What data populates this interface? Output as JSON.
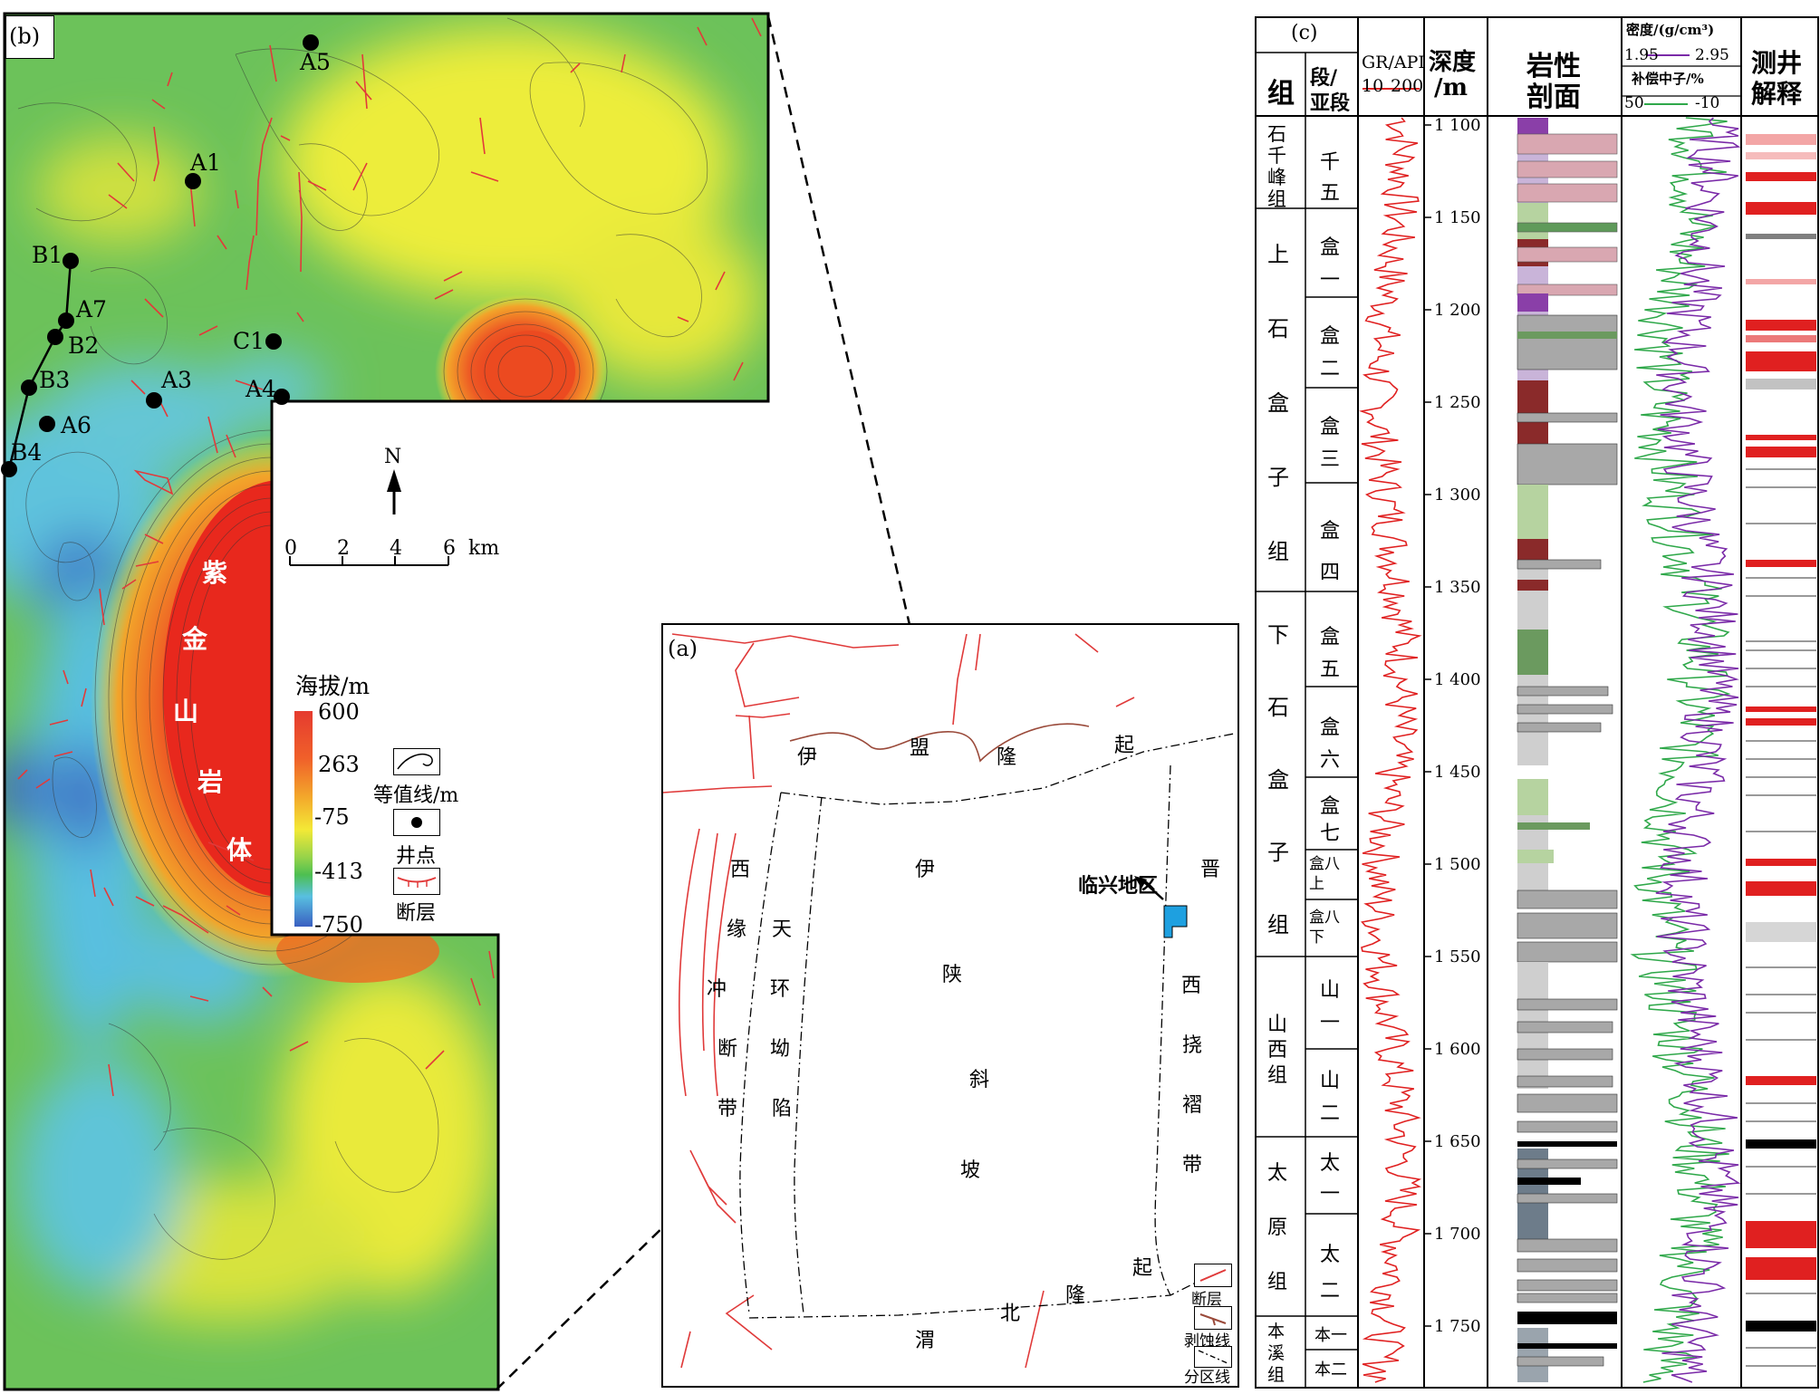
{
  "panel_b": {
    "label": "(b)",
    "wells": [
      {
        "name": "A5"
      },
      {
        "name": "A1"
      },
      {
        "name": "B1"
      },
      {
        "name": "A7"
      },
      {
        "name": "B2"
      },
      {
        "name": "C1"
      },
      {
        "name": "B3"
      },
      {
        "name": "A3"
      },
      {
        "name": "A4"
      },
      {
        "name": "A6"
      },
      {
        "name": "B4"
      }
    ],
    "rock_body_chars": [
      "紫",
      "金",
      "山",
      "岩",
      "体"
    ],
    "north": "N",
    "scale": {
      "ticks": [
        "0",
        "2",
        "4",
        "6"
      ],
      "unit": "km"
    },
    "colorbar": {
      "title": "海拔/m",
      "ticks": [
        "600",
        "263",
        "-75",
        "-413",
        "-750"
      ],
      "colors": [
        "#e53b2f",
        "#f09a2a",
        "#f3e936",
        "#4dbf51",
        "#3a5fc1"
      ]
    },
    "legend": [
      {
        "label": "等值线/m",
        "icon": "contour-icon"
      },
      {
        "label": "井点",
        "icon": "well-dot-icon"
      },
      {
        "label": "断层",
        "icon": "fault-icon"
      }
    ]
  },
  "panel_a": {
    "label": "(a)",
    "regions": [
      {
        "text": "伊盟隆起",
        "chars": [
          "伊",
          "盟",
          "隆",
          "起"
        ]
      },
      {
        "text": "西缘冲断带",
        "chars": [
          "西",
          "缘",
          "冲",
          "断",
          "带"
        ]
      },
      {
        "text": "天环坳陷",
        "chars": [
          "天",
          "环",
          "坳",
          "陷"
        ]
      },
      {
        "text": "伊陕斜坡",
        "chars": [
          "伊",
          "陕",
          "斜",
          "坡"
        ]
      },
      {
        "text": "晋西挠褶带",
        "chars": [
          "晋",
          "西",
          "挠",
          "褶",
          "带"
        ]
      },
      {
        "text": "渭北隆起",
        "chars": [
          "渭",
          "北",
          "隆",
          "起"
        ]
      }
    ],
    "study_area": "临兴地区",
    "legend": [
      "断层",
      "剥蚀线",
      "分区线"
    ],
    "colors": {
      "study_area": "#1ea0e0",
      "fault": "#e03a3a"
    }
  },
  "panel_c": {
    "label": "(c)",
    "headers": {
      "formation": "组",
      "member": [
        "段/",
        "亚段"
      ],
      "gr": "GR/API",
      "gr_range": [
        "10",
        "200"
      ],
      "depth": [
        "深度",
        "/m"
      ],
      "lithology": [
        "岩性",
        "剖面"
      ],
      "density": "密度/(g/cm³)",
      "density_range": [
        "1.95",
        "2.95"
      ],
      "neutron": "补偿中子/%",
      "neutron_range": [
        "50",
        "-10"
      ],
      "interpretation": [
        "测井",
        "解释"
      ]
    },
    "formations": [
      {
        "name": "石千峰组",
        "chars": [
          "石",
          "千",
          "峰",
          "组"
        ]
      },
      {
        "name": "上石盒子组",
        "chars": [
          "上",
          "石",
          "盒",
          "子",
          "组"
        ]
      },
      {
        "name": "下石盒子组",
        "chars": [
          "下",
          "石",
          "盒",
          "子",
          "组"
        ]
      },
      {
        "name": "山西组",
        "chars": [
          "山",
          "西",
          "组"
        ]
      },
      {
        "name": "太原组",
        "chars": [
          "太",
          "原",
          "组"
        ]
      },
      {
        "name": "本溪组",
        "chars": [
          "本",
          "溪",
          "组"
        ]
      }
    ],
    "members": [
      {
        "lines": [
          "千",
          "五"
        ]
      },
      {
        "lines": [
          "盒",
          "一"
        ]
      },
      {
        "lines": [
          "盒",
          "二"
        ]
      },
      {
        "lines": [
          "盒",
          "三"
        ]
      },
      {
        "lines": [
          "盒",
          "四"
        ]
      },
      {
        "lines": [
          "盒",
          "五"
        ]
      },
      {
        "lines": [
          "盒",
          "六"
        ]
      },
      {
        "lines": [
          "盒",
          "七"
        ]
      },
      {
        "lines": [
          "盒八",
          "上"
        ]
      },
      {
        "lines": [
          "盒八",
          "下"
        ]
      },
      {
        "lines": [
          "山",
          "一"
        ]
      },
      {
        "lines": [
          "山",
          "二"
        ]
      },
      {
        "lines": [
          "太",
          "一"
        ]
      },
      {
        "lines": [
          "太",
          "二"
        ]
      },
      {
        "lines": [
          "本一"
        ]
      },
      {
        "lines": [
          "本二"
        ]
      }
    ],
    "depth_ticks": [
      "1 100",
      "1 150",
      "1 200",
      "1 250",
      "1 300",
      "1 350",
      "1 400",
      "1 450",
      "1 500",
      "1 550",
      "1 600",
      "1 650",
      "1 700",
      "1 750"
    ],
    "curve_colors": {
      "gr": "#e02020",
      "density": "#7a2aa8",
      "neutron": "#2fa84a"
    }
  }
}
